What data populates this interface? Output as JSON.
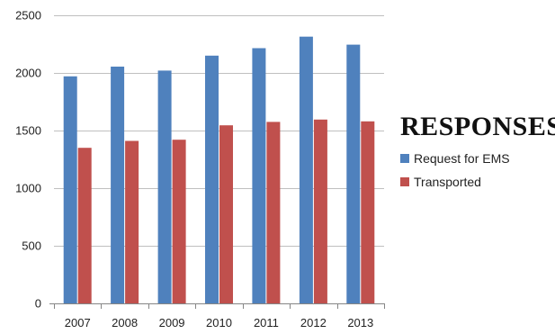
{
  "chart_data": {
    "type": "bar",
    "title": "",
    "xlabel": "",
    "ylabel": "",
    "categories": [
      "2007",
      "2008",
      "2009",
      "2010",
      "2011",
      "2012",
      "2013"
    ],
    "series": [
      {
        "name": "Request for EMS",
        "values": [
          1970,
          2055,
          2020,
          2150,
          2215,
          2315,
          2245
        ],
        "color": "#4F81BD"
      },
      {
        "name": "Transported",
        "values": [
          1350,
          1410,
          1420,
          1545,
          1575,
          1595,
          1580
        ],
        "color": "#C0504D"
      }
    ],
    "ylim": [
      0,
      2500
    ],
    "yticks": [
      0,
      500,
      1000,
      1500,
      2000,
      2500
    ],
    "grid": true,
    "legend_position": "right"
  },
  "legend": {
    "title": "RESPONSES",
    "items": [
      "Request for EMS",
      "Transported"
    ]
  }
}
